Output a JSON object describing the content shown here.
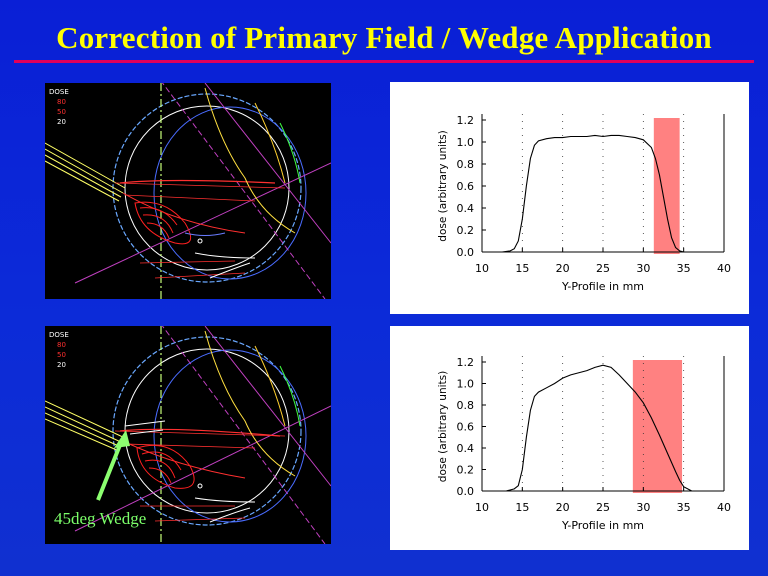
{
  "title": "Correction of Primary Field  /  Wedge Application",
  "colors": {
    "background": "#0c2bd8",
    "title": "#ffff00",
    "title_rule": "#e0005a",
    "highlight": "#ff6b6b",
    "annotation": "#7cff6a"
  },
  "dose_images": [
    {
      "legend": [
        "DOSE",
        "80",
        "50",
        "20"
      ]
    },
    {
      "legend": [
        "DOSE",
        "80",
        "50",
        "20"
      ]
    }
  ],
  "annotation": {
    "label": "45deg Wedge"
  },
  "chart_data": [
    {
      "type": "line",
      "xlabel": "Y-Profile in  mm",
      "ylabel": "dose (arbitrary units)",
      "xlim": [
        10,
        40
      ],
      "ylim": [
        0,
        1.2
      ],
      "xticks": [
        10,
        15,
        20,
        25,
        30,
        35,
        40
      ],
      "yticks": [
        0.0,
        0.2,
        0.4,
        0.6,
        0.8,
        1.0,
        1.2
      ],
      "xtick_labels": [
        "10",
        "15",
        "20",
        "25",
        "30",
        "35",
        "40"
      ],
      "ytick_labels": [
        "0.0",
        "0.2",
        "0.4",
        "0.6",
        "0.8",
        "1.0",
        "1.2"
      ],
      "highlight": {
        "x": [
          31.3,
          34.5
        ]
      },
      "series": [
        {
          "x": [
            12.5,
            13.5,
            14.0,
            14.5,
            15.0,
            15.5,
            16.0,
            16.5,
            17.0,
            18.0,
            19.0,
            20.0,
            21.0,
            22.0,
            23.0,
            24.0,
            25.0,
            26.0,
            27.0,
            28.0,
            29.0,
            30.0,
            31.0,
            31.5,
            32.0,
            32.5,
            33.0,
            33.5,
            34.0,
            34.5,
            35.0
          ],
          "y": [
            0.0,
            0.01,
            0.03,
            0.1,
            0.3,
            0.6,
            0.85,
            0.97,
            1.01,
            1.03,
            1.04,
            1.04,
            1.05,
            1.05,
            1.05,
            1.06,
            1.05,
            1.06,
            1.06,
            1.05,
            1.04,
            1.02,
            0.95,
            0.85,
            0.7,
            0.5,
            0.3,
            0.13,
            0.04,
            0.01,
            0.0
          ]
        }
      ]
    },
    {
      "type": "line",
      "xlabel": "Y-Profile in  mm",
      "ylabel": "dose (arbitrary units)",
      "xlim": [
        10,
        40
      ],
      "ylim": [
        0,
        1.2
      ],
      "xticks": [
        10,
        15,
        20,
        25,
        30,
        35,
        40
      ],
      "yticks": [
        0.0,
        0.2,
        0.4,
        0.6,
        0.8,
        1.0,
        1.2
      ],
      "xtick_labels": [
        "10",
        "15",
        "20",
        "25",
        "30",
        "35",
        "40"
      ],
      "ytick_labels": [
        "0.0",
        "0.2",
        "0.4",
        "0.6",
        "0.8",
        "1.0",
        "1.2"
      ],
      "highlight": {
        "x": [
          28.7,
          34.8
        ]
      },
      "series": [
        {
          "x": [
            13.0,
            14.0,
            14.5,
            15.0,
            15.5,
            16.0,
            16.5,
            17.0,
            18.0,
            19.0,
            20.0,
            21.0,
            22.0,
            23.0,
            24.0,
            25.0,
            26.0,
            27.0,
            28.0,
            29.0,
            30.0,
            31.0,
            32.0,
            33.0,
            34.0,
            34.5,
            35.0,
            36.0
          ],
          "y": [
            0.0,
            0.02,
            0.05,
            0.2,
            0.5,
            0.75,
            0.88,
            0.92,
            0.96,
            1.0,
            1.05,
            1.08,
            1.1,
            1.12,
            1.15,
            1.17,
            1.15,
            1.08,
            1.0,
            0.92,
            0.82,
            0.68,
            0.52,
            0.35,
            0.18,
            0.1,
            0.04,
            0.0
          ]
        }
      ]
    }
  ]
}
